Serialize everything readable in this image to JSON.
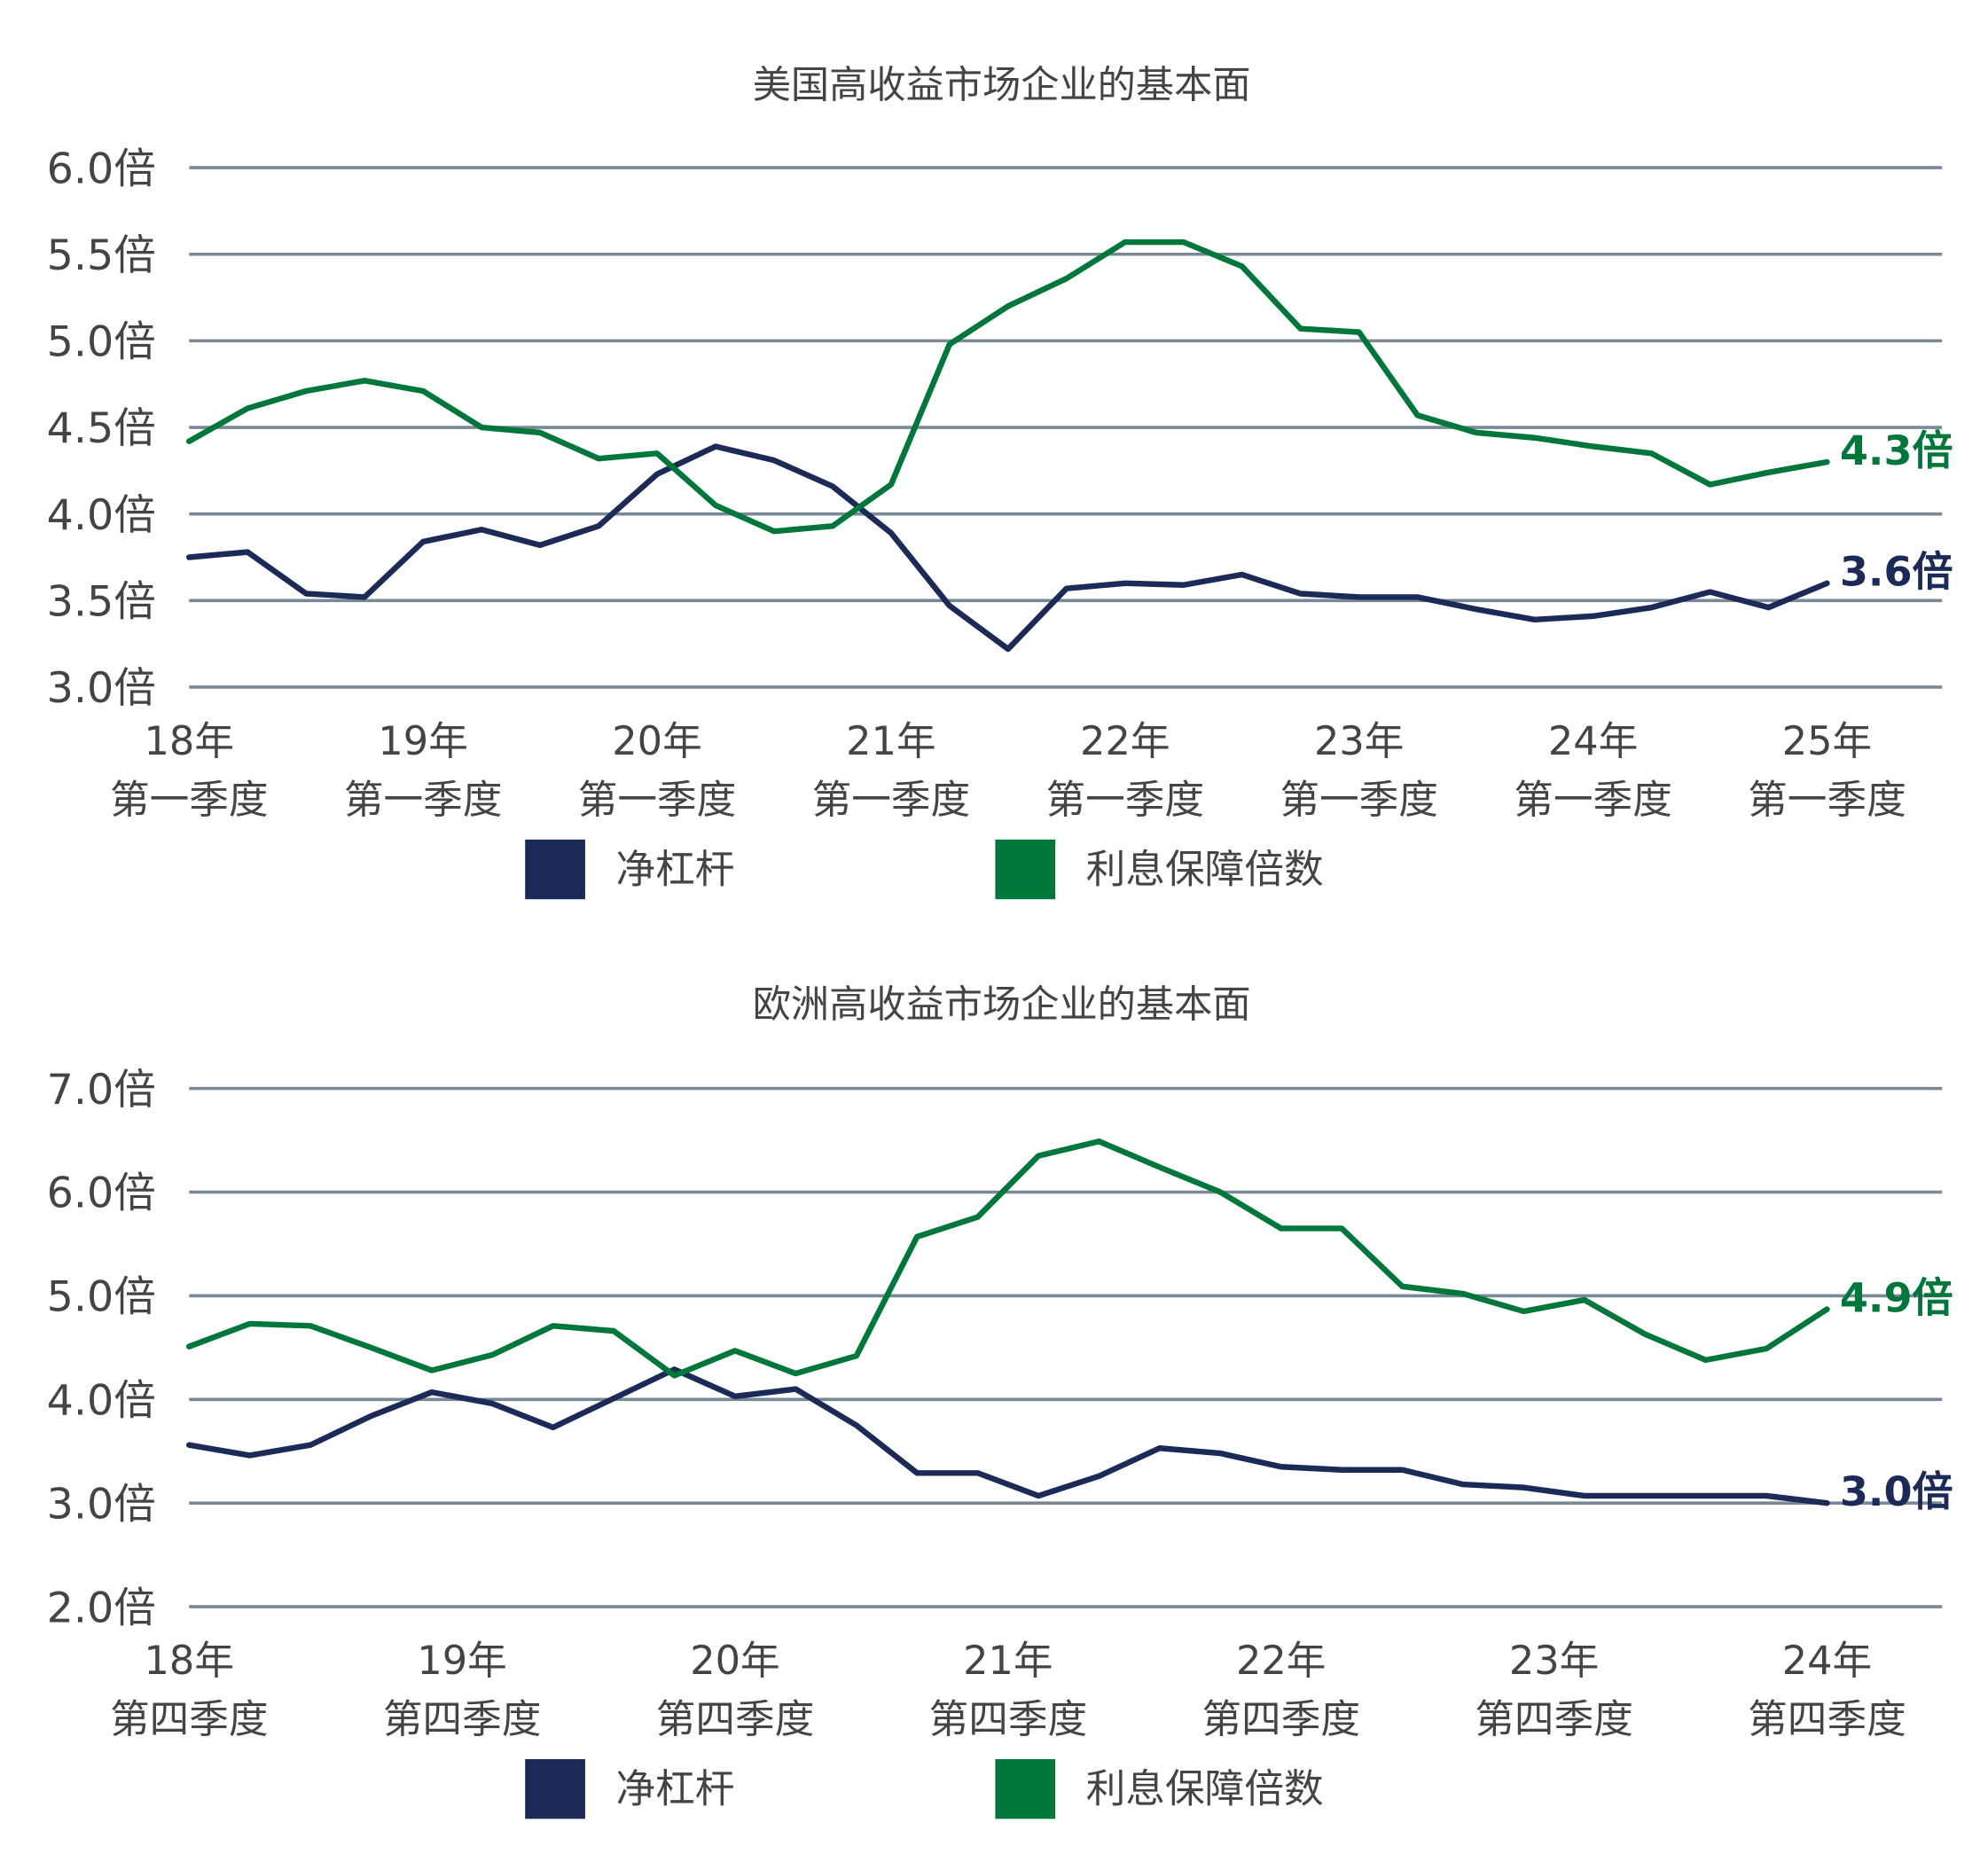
{
  "chart_data": [
    {
      "type": "line",
      "title": "美国高收益市场企业的基本面",
      "ylim": [
        3.0,
        6.0
      ],
      "y_ticks": [
        "6.0倍",
        "5.5倍",
        "5.0倍",
        "4.5倍",
        "4.0倍",
        "3.5倍",
        "3.0倍"
      ],
      "y_tick_values": [
        6.0,
        5.5,
        5.0,
        4.5,
        4.0,
        3.5,
        3.0
      ],
      "x_ticks": [
        {
          "year": "18年",
          "quarter": "第一季度"
        },
        {
          "year": "19年",
          "quarter": "第一季度"
        },
        {
          "year": "20年",
          "quarter": "第一季度"
        },
        {
          "year": "21年",
          "quarter": "第一季度"
        },
        {
          "year": "22年",
          "quarter": "第一季度"
        },
        {
          "year": "23年",
          "quarter": "第一季度"
        },
        {
          "year": "24年",
          "quarter": "第一季度"
        },
        {
          "year": "25年",
          "quarter": "第一季度"
        }
      ],
      "grid": true,
      "legend_position": "bottom",
      "series": [
        {
          "name": "净杠杆",
          "color": "#1b2a56",
          "end_label": "3.6倍",
          "values": [
            3.75,
            3.78,
            3.54,
            3.52,
            3.84,
            3.91,
            3.82,
            3.93,
            4.23,
            4.39,
            4.31,
            4.16,
            3.89,
            3.47,
            3.22,
            3.57,
            3.6,
            3.59,
            3.65,
            3.54,
            3.52,
            3.52,
            3.45,
            3.39,
            3.41,
            3.46,
            3.55,
            3.46,
            3.6
          ]
        },
        {
          "name": "利息保障倍数",
          "color": "#00773a",
          "end_label": "4.3倍",
          "values": [
            4.42,
            4.61,
            4.71,
            4.77,
            4.71,
            4.5,
            4.47,
            4.32,
            4.35,
            4.05,
            3.9,
            3.93,
            4.17,
            4.98,
            5.2,
            5.36,
            5.57,
            5.57,
            5.43,
            5.07,
            5.05,
            4.57,
            4.47,
            4.44,
            4.39,
            4.35,
            4.17,
            4.24,
            4.3
          ]
        }
      ]
    },
    {
      "type": "line",
      "title": "欧洲高收益市场企业的基本面",
      "ylim": [
        2.0,
        7.0
      ],
      "y_ticks": [
        "7.0倍",
        "6.0倍",
        "5.0倍",
        "4.0倍",
        "3.0倍",
        "2.0倍"
      ],
      "y_tick_values": [
        7.0,
        6.0,
        5.0,
        4.0,
        3.0,
        2.0
      ],
      "x_ticks": [
        {
          "year": "18年",
          "quarter": "第四季度"
        },
        {
          "year": "19年",
          "quarter": "第四季度"
        },
        {
          "year": "20年",
          "quarter": "第四季度"
        },
        {
          "year": "21年",
          "quarter": "第四季度"
        },
        {
          "year": "22年",
          "quarter": "第四季度"
        },
        {
          "year": "23年",
          "quarter": "第四季度"
        },
        {
          "year": "24年",
          "quarter": "第四季度"
        }
      ],
      "grid": true,
      "legend_position": "bottom",
      "series": [
        {
          "name": "净杠杆",
          "color": "#1b2a56",
          "end_label": "3.0倍",
          "values": [
            3.56,
            3.46,
            3.56,
            3.84,
            4.07,
            3.96,
            3.73,
            4.01,
            4.29,
            4.03,
            4.1,
            3.75,
            3.29,
            3.29,
            3.07,
            3.26,
            3.53,
            3.48,
            3.35,
            3.32,
            3.32,
            3.18,
            3.15,
            3.07,
            3.07,
            3.07,
            3.07,
            3.0
          ]
        },
        {
          "name": "利息保障倍数",
          "color": "#00773a",
          "end_label": "4.9倍",
          "values": [
            4.51,
            4.73,
            4.71,
            4.5,
            4.28,
            4.43,
            4.71,
            4.66,
            4.23,
            4.47,
            4.25,
            4.42,
            5.57,
            5.76,
            6.35,
            6.49,
            6.24,
            6.0,
            5.65,
            5.65,
            5.09,
            5.02,
            4.85,
            4.96,
            4.63,
            4.38,
            4.49,
            4.87
          ]
        }
      ]
    }
  ],
  "colors": {
    "grid": "#7a8896",
    "text": "#444444"
  }
}
